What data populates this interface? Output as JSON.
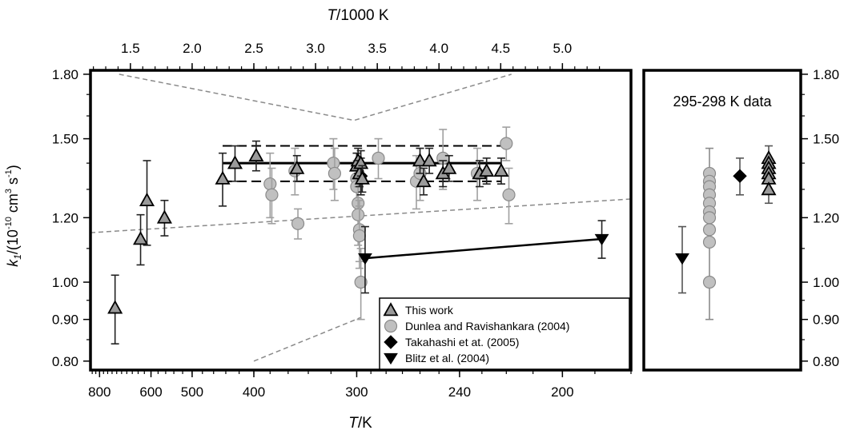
{
  "chart_data": [
    {
      "type": "scatter",
      "title": "",
      "xlabel_main": "T",
      "xlabel_unit": "/K",
      "x2label_main": "T",
      "x2label_unit": "/1000 K",
      "ylabel_main": "k",
      "ylabel_sub": "1",
      "ylabel_unit": "/(10",
      "ylabel_exp1": "-10",
      "ylabel_mid": " cm",
      "ylabel_exp2": "3",
      "ylabel_end": " s",
      "ylabel_exp3": "-1",
      "ylabel_close": ")",
      "y_scale": "log",
      "ylim": [
        0.78,
        1.82
      ],
      "x_scale": "reciprocal",
      "xlim": [
        850,
        180
      ],
      "x_ticks": [
        {
          "label": "800",
          "value": 800
        },
        {
          "label": "600",
          "value": 600
        },
        {
          "label": "500",
          "value": 500
        },
        {
          "label": "400",
          "value": 400
        },
        {
          "label": "300",
          "value": 300
        },
        {
          "label": "240",
          "value": 240
        },
        {
          "label": "200",
          "value": 200
        }
      ],
      "x2_ticks": [
        {
          "label": "1.5",
          "value": 1.5
        },
        {
          "label": "2.0",
          "value": 2.0
        },
        {
          "label": "2.5",
          "value": 2.5
        },
        {
          "label": "3.0",
          "value": 3.0
        },
        {
          "label": "3.5",
          "value": 3.5
        },
        {
          "label": "4.0",
          "value": 4.0
        },
        {
          "label": "4.5",
          "value": 4.5
        },
        {
          "label": "5.0",
          "value": 5.0
        }
      ],
      "y_ticks": [
        {
          "label": "0.80",
          "value": 0.8
        },
        {
          "label": "0.90",
          "value": 0.9
        },
        {
          "label": "1.00",
          "value": 1.0
        },
        {
          "label": "1.20",
          "value": 1.2
        },
        {
          "label": "1.50",
          "value": 1.5
        },
        {
          "label": "1.80",
          "value": 1.8
        }
      ],
      "legend_position": "bottom-right",
      "series": [
        {
          "name": "This work",
          "marker": "triangle-up",
          "color": "#9a9a9a",
          "points": [
            {
              "x": 727,
              "y": 0.93,
              "err": 0.09
            },
            {
              "x": 632,
              "y": 1.13,
              "err": 0.08
            },
            {
              "x": 612,
              "y": 1.26,
              "err": 0.15
            },
            {
              "x": 563,
              "y": 1.2,
              "err": 0.06
            },
            {
              "x": 445,
              "y": 1.34,
              "err": 0.1
            },
            {
              "x": 426,
              "y": 1.4,
              "err": 0.07
            },
            {
              "x": 397,
              "y": 1.43,
              "err": 0.06
            },
            {
              "x": 351,
              "y": 1.38,
              "err": 0.05
            },
            {
              "x": 300,
              "y": 1.39,
              "err": 0.05
            },
            {
              "x": 299,
              "y": 1.41,
              "err": 0.05
            },
            {
              "x": 298,
              "y": 1.36,
              "err": 0.05
            },
            {
              "x": 297,
              "y": 1.4,
              "err": 0.05
            },
            {
              "x": 296,
              "y": 1.34,
              "err": 0.05
            },
            {
              "x": 260,
              "y": 1.41,
              "err": 0.05
            },
            {
              "x": 258,
              "y": 1.33,
              "err": 0.05
            },
            {
              "x": 255,
              "y": 1.41,
              "err": 0.05
            },
            {
              "x": 248,
              "y": 1.36,
              "err": 0.05
            },
            {
              "x": 245,
              "y": 1.38,
              "err": 0.05
            },
            {
              "x": 231,
              "y": 1.36,
              "err": 0.05
            },
            {
              "x": 228,
              "y": 1.37,
              "err": 0.05
            },
            {
              "x": 222,
              "y": 1.37,
              "err": 0.05
            }
          ],
          "fit": {
            "x": [
              445,
              222
            ],
            "y": [
              1.4,
              1.4
            ],
            "band": [
              1.33,
              1.47
            ]
          }
        },
        {
          "name": "Dunlea and Ravishankara (2004)",
          "marker": "circle",
          "color": "#c0c0c0",
          "points": [
            {
              "x": 380,
              "y": 1.32,
              "err": 0.12
            },
            {
              "x": 378,
              "y": 1.28,
              "err": 0.1
            },
            {
              "x": 353,
              "y": 1.37,
              "err": 0.09
            },
            {
              "x": 350,
              "y": 1.18,
              "err": 0.05
            },
            {
              "x": 318,
              "y": 1.4,
              "err": 0.1
            },
            {
              "x": 317,
              "y": 1.36,
              "err": 0.1
            },
            {
              "x": 300,
              "y": 1.34,
              "err": 0.1
            },
            {
              "x": 300,
              "y": 1.31,
              "err": 0.1
            },
            {
              "x": 299,
              "y": 1.25,
              "err": 0.1
            },
            {
              "x": 299,
              "y": 1.21,
              "err": 0.1
            },
            {
              "x": 298,
              "y": 1.16,
              "err": 0.1
            },
            {
              "x": 298,
              "y": 1.14,
              "err": 0.1
            },
            {
              "x": 297,
              "y": 1.0,
              "err": 0.1
            },
            {
              "x": 285,
              "y": 1.42,
              "err": 0.08
            },
            {
              "x": 262,
              "y": 1.33,
              "err": 0.1
            },
            {
              "x": 260,
              "y": 1.36,
              "err": 0.1
            },
            {
              "x": 248,
              "y": 1.42,
              "err": 0.12
            },
            {
              "x": 232,
              "y": 1.36,
              "err": 0.1
            },
            {
              "x": 220,
              "y": 1.48,
              "err": 0.07
            },
            {
              "x": 219,
              "y": 1.28,
              "err": 0.1
            }
          ]
        },
        {
          "name": "Takahashi et at. (2005)",
          "marker": "diamond",
          "color": "#000000",
          "points": [
            {
              "x": 297,
              "y": 1.35,
              "err": 0.07
            }
          ]
        },
        {
          "name": "Blitz et al. (2004)",
          "marker": "triangle-down",
          "color": "#000000",
          "points": [
            {
              "x": 294,
              "y": 1.07,
              "err": 0.1
            },
            {
              "x": 188,
              "y": 1.13,
              "err": 0.06
            }
          ],
          "line": true
        }
      ]
    },
    {
      "type": "scatter",
      "title": "295-298 K data",
      "y_scale": "log",
      "ylim": [
        0.78,
        1.82
      ],
      "y_ticks": [
        {
          "label": "0.80",
          "value": 0.8
        },
        {
          "label": "0.90",
          "value": 0.9
        },
        {
          "label": "1.00",
          "value": 1.0
        },
        {
          "label": "1.20",
          "value": 1.2
        },
        {
          "label": "1.50",
          "value": 1.5
        },
        {
          "label": "1.80",
          "value": 1.8
        }
      ],
      "columns": [
        {
          "series": "Blitz et al. (2004)",
          "marker": "triangle-down",
          "color": "#000000",
          "values": [
            1.07
          ],
          "err": [
            0.1
          ]
        },
        {
          "series": "Dunlea and Ravishankara (2004)",
          "marker": "circle",
          "color": "#c0c0c0",
          "values": [
            1.36,
            1.33,
            1.31,
            1.28,
            1.25,
            1.22,
            1.2,
            1.16,
            1.12,
            1.0
          ],
          "err": [
            0.1,
            0,
            0,
            0,
            0,
            0,
            0,
            0,
            0,
            0.1
          ]
        },
        {
          "series": "Takahashi et at. (2005)",
          "marker": "diamond",
          "color": "#000000",
          "values": [
            1.35
          ],
          "err": [
            0.07
          ]
        },
        {
          "series": "This work",
          "marker": "triangle-up",
          "color": "#9a9a9a",
          "values": [
            1.42,
            1.4,
            1.38,
            1.36,
            1.34,
            1.3
          ],
          "err": [
            0.05,
            0,
            0,
            0,
            0,
            0.05
          ]
        }
      ]
    }
  ]
}
